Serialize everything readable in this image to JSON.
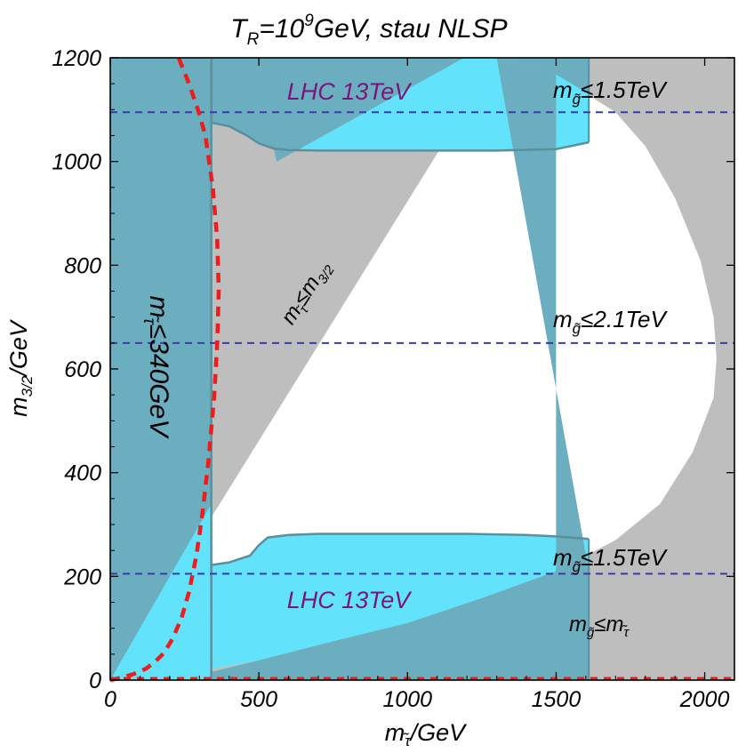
{
  "colors": {
    "gray": "#bebebe",
    "cyan": "#62e2fb",
    "teal": "#6baebf",
    "tealEdge": "#5b8f9b",
    "red": "#ee1c1c",
    "blue": "#3a3aa8",
    "purple": "#7a1678"
  },
  "chart_data": {
    "type": "region",
    "title": {
      "main": "T",
      "sub_r": "R",
      "eq": "=10",
      "exp": "9",
      "rest": "GeV, stau NLSP"
    },
    "xlabel": {
      "m": "m",
      "sub": "τ̃",
      "unit": "/GeV"
    },
    "ylabel": {
      "m": "m",
      "sub": "3/2",
      "unit": "/GeV"
    },
    "xlim": [
      0,
      2100
    ],
    "ylim": [
      0,
      1200
    ],
    "xticks": [
      0,
      500,
      1000,
      1500,
      2000
    ],
    "yticks": [
      0,
      200,
      400,
      600,
      800,
      1000,
      1200
    ],
    "xtick_labels": [
      "0",
      "500",
      "1000",
      "1500",
      "2000"
    ],
    "ytick_labels": [
      "0",
      "200",
      "400",
      "600",
      "800",
      "1000",
      "1200"
    ],
    "gluino_lines": [
      {
        "y": 1095,
        "label_m": "m",
        "label_sub": "g̃",
        "label_rest": "≤1.5TeV"
      },
      {
        "y": 650,
        "label_m": "m",
        "label_sub": "g̃",
        "label_rest": "≤2.1TeV"
      },
      {
        "y": 205,
        "label_m": "m",
        "label_sub": "g̃",
        "label_rest": "≤1.5TeV"
      }
    ],
    "stau_limit": {
      "x": 340,
      "label_m": "m",
      "label_sub": "τ̃",
      "label_rest": "≤340GeV"
    },
    "diagonal": {
      "label_m": "m",
      "label_sub": "τ̃",
      "label_rest": "≤m",
      "label_sub2": "3/2"
    },
    "lhc_labels": [
      "LHC 13TeV",
      "LHC 13TeV"
    ],
    "corner_label": {
      "m": "m",
      "sub": "g̃",
      "rest": "≤m",
      "sub2": "τ̃"
    },
    "lhc_x_max": 1610,
    "white_boundary": [
      [
        0,
        0
      ],
      [
        250,
        12
      ],
      [
        500,
        38
      ],
      [
        750,
        75
      ],
      [
        1000,
        110
      ],
      [
        1250,
        158
      ],
      [
        1500,
        210
      ],
      [
        1700,
        270
      ],
      [
        1850,
        340
      ],
      [
        1960,
        440
      ],
      [
        2030,
        545
      ],
      [
        2040,
        620
      ],
      [
        2030,
        700
      ],
      [
        1985,
        810
      ],
      [
        1900,
        930
      ],
      [
        1800,
        1030
      ],
      [
        1700,
        1095
      ],
      [
        1500,
        1168
      ],
      [
        1300,
        1200
      ]
    ],
    "cyan_bottom_top": [
      [
        340,
        222
      ],
      [
        400,
        227
      ],
      [
        470,
        240
      ],
      [
        500,
        260
      ],
      [
        530,
        275
      ],
      [
        600,
        280
      ],
      [
        700,
        282
      ],
      [
        800,
        282
      ],
      [
        1000,
        282
      ],
      [
        1200,
        282
      ],
      [
        1400,
        280
      ],
      [
        1500,
        277
      ],
      [
        1610,
        272
      ]
    ],
    "cyan_top_bottom": [
      [
        340,
        1075
      ],
      [
        400,
        1068
      ],
      [
        460,
        1050
      ],
      [
        500,
        1035
      ],
      [
        550,
        1025
      ],
      [
        600,
        1022
      ],
      [
        700,
        1021
      ],
      [
        900,
        1021
      ],
      [
        1100,
        1021
      ],
      [
        1300,
        1021
      ],
      [
        1500,
        1024
      ],
      [
        1610,
        1037
      ]
    ],
    "red_curve": [
      [
        0,
        0
      ],
      [
        40,
        5
      ],
      [
        80,
        12
      ],
      [
        120,
        22
      ],
      [
        150,
        35
      ],
      [
        180,
        52
      ],
      [
        210,
        80
      ],
      [
        240,
        120
      ],
      [
        265,
        170
      ],
      [
        290,
        240
      ],
      [
        310,
        320
      ],
      [
        330,
        420
      ],
      [
        350,
        550
      ],
      [
        360,
        650
      ],
      [
        365,
        750
      ],
      [
        360,
        850
      ],
      [
        345,
        950
      ],
      [
        320,
        1050
      ],
      [
        295,
        1100
      ],
      [
        265,
        1150
      ],
      [
        230,
        1200
      ]
    ]
  }
}
